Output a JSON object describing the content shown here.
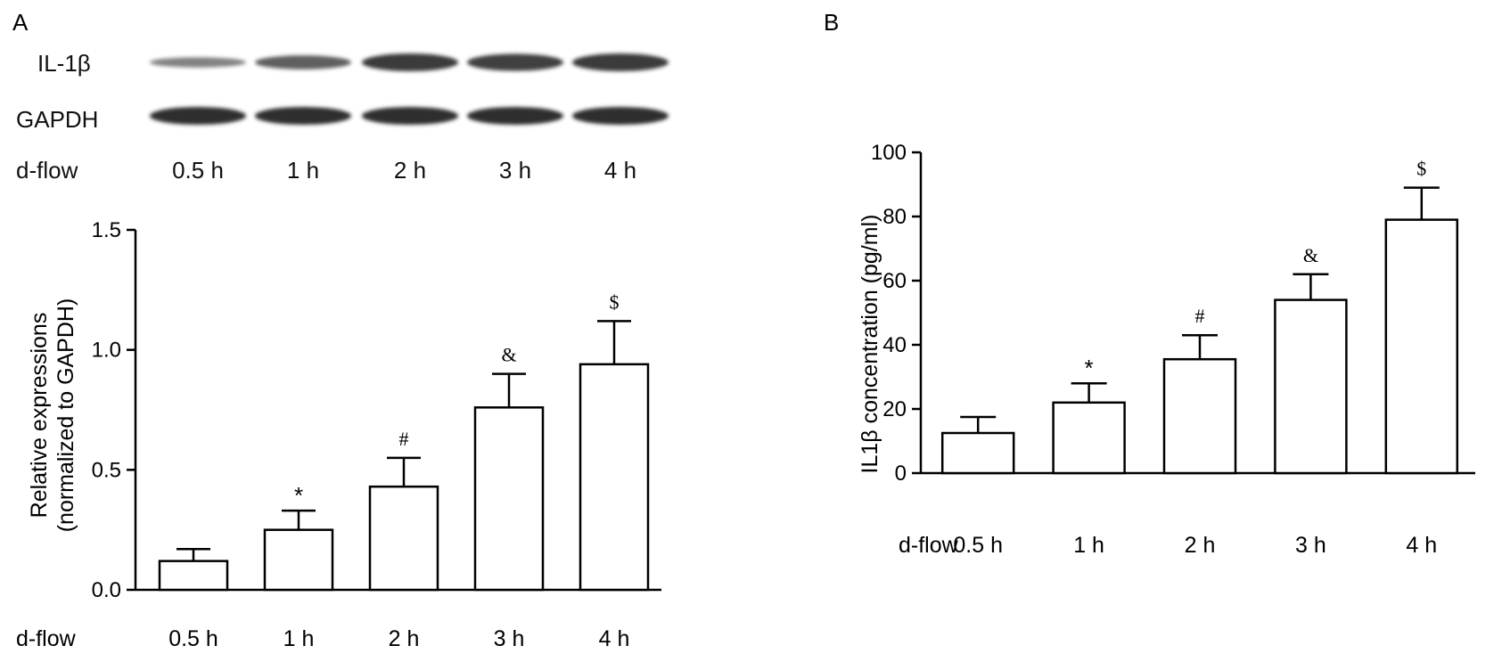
{
  "panels": {
    "a_letter": "A",
    "b_letter": "B"
  },
  "blot": {
    "protein_label": "IL-1β",
    "control_label": "GAPDH",
    "row_label": "d-flow",
    "lanes": [
      "0.5 h",
      "1 h",
      "2 h",
      "3 h",
      "4 h"
    ],
    "protein_band_intensity": [
      0.25,
      0.55,
      0.85,
      0.8,
      0.85
    ]
  },
  "chart_data": [
    {
      "type": "bar",
      "panel": "A",
      "x_row_label": "d-flow",
      "categories": [
        "0.5 h",
        "1 h",
        "2 h",
        "3 h",
        "4 h"
      ],
      "values": [
        0.12,
        0.25,
        0.43,
        0.76,
        0.94
      ],
      "errors": [
        0.05,
        0.08,
        0.12,
        0.14,
        0.18
      ],
      "significance": [
        "",
        "*",
        "#",
        "&",
        "$"
      ],
      "ylabel_line1": "Relative expressions",
      "ylabel_line2": "(normalized to GAPDH)",
      "ylim": [
        0,
        1.5
      ],
      "yticks": [
        0.0,
        0.5,
        1.0,
        1.5
      ],
      "ytick_labels": [
        "0.0",
        "0.5",
        "1.0",
        "1.5"
      ],
      "grid": false,
      "bar_fill": "#ffffff",
      "bar_stroke": "#000000"
    },
    {
      "type": "bar",
      "panel": "B",
      "x_row_label": "d-flow",
      "categories": [
        "0.5 h",
        "1 h",
        "2 h",
        "3 h",
        "4 h"
      ],
      "values": [
        12.5,
        22,
        35.5,
        54,
        79
      ],
      "errors": [
        5,
        6,
        7.5,
        8,
        10
      ],
      "significance": [
        "",
        "*",
        "#",
        "&",
        "$"
      ],
      "ylabel": "IL1β concentration (pg/ml)",
      "ylim": [
        0,
        100
      ],
      "yticks": [
        0,
        20,
        40,
        60,
        80,
        100
      ],
      "ytick_labels": [
        "0",
        "20",
        "40",
        "60",
        "80",
        "100"
      ],
      "grid": false,
      "bar_fill": "#ffffff",
      "bar_stroke": "#000000"
    }
  ]
}
